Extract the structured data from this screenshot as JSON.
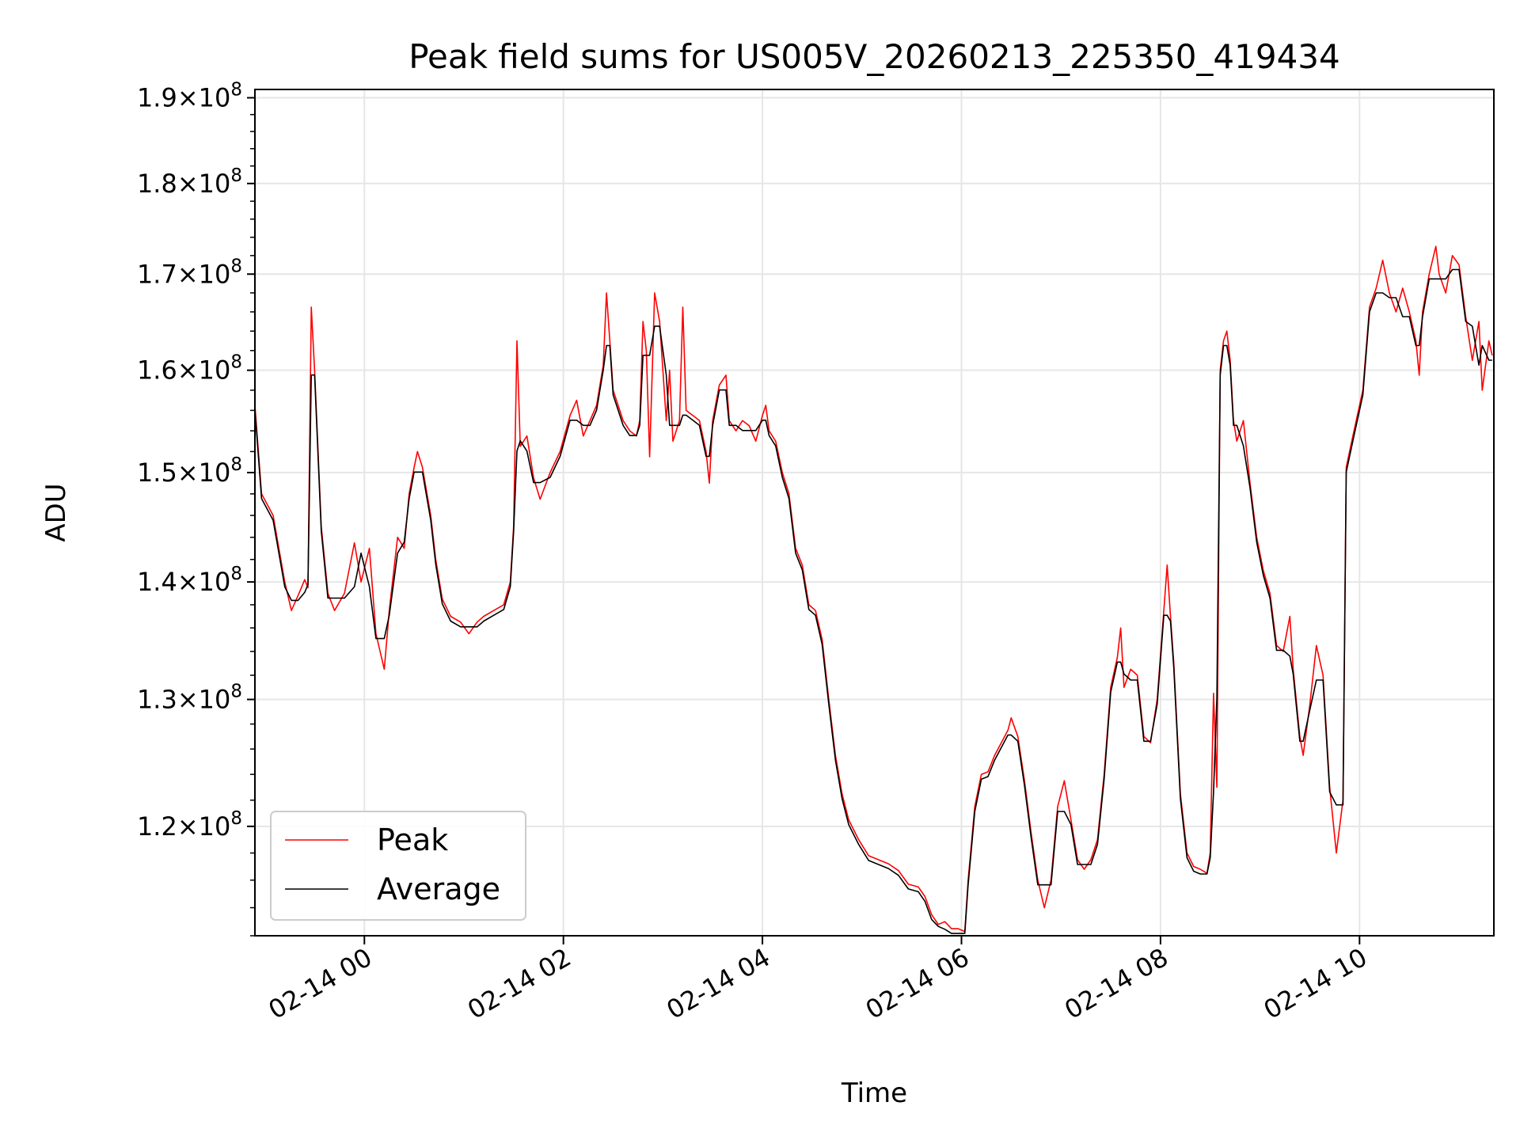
{
  "chart_data": {
    "type": "line",
    "title": "Peak field sums for US005V_20260213_225350_419434",
    "xlabel": "Time",
    "ylabel": "ADU",
    "y_scale": "log",
    "ylim": [
      112000000,
      191000000
    ],
    "xlim": [
      "2026-02-13 22:54",
      "2026-02-14 11:21"
    ],
    "x_ticks": [
      {
        "value": "2026-02-14 00:00",
        "label": "02-14 00"
      },
      {
        "value": "2026-02-14 02:00",
        "label": "02-14 02"
      },
      {
        "value": "2026-02-14 04:00",
        "label": "02-14 04"
      },
      {
        "value": "2026-02-14 06:00",
        "label": "02-14 06"
      },
      {
        "value": "2026-02-14 08:00",
        "label": "02-14 08"
      },
      {
        "value": "2026-02-14 10:00",
        "label": "02-14 10"
      }
    ],
    "y_ticks": [
      {
        "value": 120000000,
        "mantissa": "1.2",
        "base": "10",
        "exp": "8"
      },
      {
        "value": 130000000,
        "mantissa": "1.3",
        "base": "10",
        "exp": "8"
      },
      {
        "value": 140000000,
        "mantissa": "1.4",
        "base": "10",
        "exp": "8"
      },
      {
        "value": 150000000,
        "mantissa": "1.5",
        "base": "10",
        "exp": "8"
      },
      {
        "value": 160000000,
        "mantissa": "1.6",
        "base": "10",
        "exp": "8"
      },
      {
        "value": 170000000,
        "mantissa": "1.7",
        "base": "10",
        "exp": "8"
      },
      {
        "value": 180000000,
        "mantissa": "1.8",
        "base": "10",
        "exp": "8"
      },
      {
        "value": 190000000,
        "mantissa": "1.9",
        "base": "10",
        "exp": "8"
      }
    ],
    "grid": true,
    "legend_position": "lower-left",
    "series": [
      {
        "name": "Peak",
        "color": "#ff0000",
        "points": [
          [
            "2026-02-13 22:54",
            156.5
          ],
          [
            "2026-02-13 22:58",
            148.0
          ],
          [
            "2026-02-13 23:05",
            146.0
          ],
          [
            "2026-02-13 23:12",
            140.0
          ],
          [
            "2026-02-13 23:16",
            137.5
          ],
          [
            "2026-02-13 23:20",
            138.8
          ],
          [
            "2026-02-13 23:24",
            140.2
          ],
          [
            "2026-02-13 23:26",
            139.5
          ],
          [
            "2026-02-13 23:28",
            166.5
          ],
          [
            "2026-02-13 23:30",
            160.0
          ],
          [
            "2026-02-13 23:34",
            145.0
          ],
          [
            "2026-02-13 23:38",
            139.0
          ],
          [
            "2026-02-13 23:42",
            137.5
          ],
          [
            "2026-02-13 23:48",
            139.0
          ],
          [
            "2026-02-13 23:54",
            143.5
          ],
          [
            "2026-02-13 23:58",
            140.0
          ],
          [
            "2026-02-14 00:03",
            143.0
          ],
          [
            "2026-02-14 00:07",
            135.5
          ],
          [
            "2026-02-14 00:12",
            132.5
          ],
          [
            "2026-02-14 00:15",
            137.5
          ],
          [
            "2026-02-14 00:20",
            144.0
          ],
          [
            "2026-02-14 00:24",
            143.0
          ],
          [
            "2026-02-14 00:27",
            148.0
          ],
          [
            "2026-02-14 00:30",
            150.5
          ],
          [
            "2026-02-14 00:32",
            152.0
          ],
          [
            "2026-02-14 00:35",
            150.5
          ],
          [
            "2026-02-14 00:40",
            146.0
          ],
          [
            "2026-02-14 00:43",
            142.0
          ],
          [
            "2026-02-14 00:47",
            138.5
          ],
          [
            "2026-02-14 00:52",
            137.0
          ],
          [
            "2026-02-14 00:58",
            136.5
          ],
          [
            "2026-02-14 01:03",
            135.5
          ],
          [
            "2026-02-14 01:08",
            136.5
          ],
          [
            "2026-02-14 01:12",
            137.0
          ],
          [
            "2026-02-14 01:18",
            137.5
          ],
          [
            "2026-02-14 01:24",
            138.0
          ],
          [
            "2026-02-14 01:28",
            140.0
          ],
          [
            "2026-02-14 01:30",
            145.0
          ],
          [
            "2026-02-14 01:32",
            163.0
          ],
          [
            "2026-02-14 01:34",
            152.5
          ],
          [
            "2026-02-14 01:38",
            153.5
          ],
          [
            "2026-02-14 01:42",
            149.5
          ],
          [
            "2026-02-14 01:46",
            147.5
          ],
          [
            "2026-02-14 01:52",
            150.0
          ],
          [
            "2026-02-14 01:58",
            152.0
          ],
          [
            "2026-02-14 02:04",
            155.5
          ],
          [
            "2026-02-14 02:08",
            157.0
          ],
          [
            "2026-02-14 02:12",
            153.5
          ],
          [
            "2026-02-14 02:16",
            155.0
          ],
          [
            "2026-02-14 02:20",
            156.5
          ],
          [
            "2026-02-14 02:24",
            160.5
          ],
          [
            "2026-02-14 02:26",
            168.0
          ],
          [
            "2026-02-14 02:28",
            163.0
          ],
          [
            "2026-02-14 02:30",
            158.0
          ],
          [
            "2026-02-14 02:32",
            157.0
          ],
          [
            "2026-02-14 02:36",
            155.0
          ],
          [
            "2026-02-14 02:40",
            154.0
          ],
          [
            "2026-02-14 02:44",
            153.5
          ],
          [
            "2026-02-14 02:46",
            155.0
          ],
          [
            "2026-02-14 02:48",
            165.0
          ],
          [
            "2026-02-14 02:50",
            162.0
          ],
          [
            "2026-02-14 02:52",
            151.5
          ],
          [
            "2026-02-14 02:55",
            168.0
          ],
          [
            "2026-02-14 02:58",
            165.0
          ],
          [
            "2026-02-14 03:02",
            155.0
          ],
          [
            "2026-02-14 03:04",
            160.0
          ],
          [
            "2026-02-14 03:06",
            153.0
          ],
          [
            "2026-02-14 03:10",
            155.0
          ],
          [
            "2026-02-14 03:12",
            166.5
          ],
          [
            "2026-02-14 03:14",
            156.0
          ],
          [
            "2026-02-14 03:18",
            155.5
          ],
          [
            "2026-02-14 03:22",
            155.0
          ],
          [
            "2026-02-14 03:26",
            152.0
          ],
          [
            "2026-02-14 03:28",
            149.0
          ],
          [
            "2026-02-14 03:30",
            155.0
          ],
          [
            "2026-02-14 03:34",
            158.5
          ],
          [
            "2026-02-14 03:38",
            159.5
          ],
          [
            "2026-02-14 03:40",
            155.0
          ],
          [
            "2026-02-14 03:44",
            154.0
          ],
          [
            "2026-02-14 03:48",
            155.0
          ],
          [
            "2026-02-14 03:52",
            154.5
          ],
          [
            "2026-02-14 03:56",
            153.0
          ],
          [
            "2026-02-14 04:00",
            155.5
          ],
          [
            "2026-02-14 04:02",
            156.5
          ],
          [
            "2026-02-14 04:04",
            154.0
          ],
          [
            "2026-02-14 04:08",
            153.0
          ],
          [
            "2026-02-14 04:12",
            150.0
          ],
          [
            "2026-02-14 04:16",
            148.0
          ],
          [
            "2026-02-14 04:20",
            143.0
          ],
          [
            "2026-02-14 04:24",
            141.5
          ],
          [
            "2026-02-14 04:28",
            138.0
          ],
          [
            "2026-02-14 04:32",
            137.5
          ],
          [
            "2026-02-14 04:36",
            135.0
          ],
          [
            "2026-02-14 04:40",
            130.0
          ],
          [
            "2026-02-14 04:44",
            125.5
          ],
          [
            "2026-02-14 04:48",
            122.5
          ],
          [
            "2026-02-14 04:52",
            120.5
          ],
          [
            "2026-02-14 04:58",
            119.0
          ],
          [
            "2026-02-14 05:04",
            117.8
          ],
          [
            "2026-02-14 05:10",
            117.5
          ],
          [
            "2026-02-14 05:16",
            117.2
          ],
          [
            "2026-02-14 05:22",
            116.7
          ],
          [
            "2026-02-14 05:28",
            115.7
          ],
          [
            "2026-02-14 05:34",
            115.5
          ],
          [
            "2026-02-14 05:38",
            114.8
          ],
          [
            "2026-02-14 05:42",
            113.5
          ],
          [
            "2026-02-14 05:46",
            112.8
          ],
          [
            "2026-02-14 05:50",
            113.0
          ],
          [
            "2026-02-14 05:54",
            112.5
          ],
          [
            "2026-02-14 05:58",
            112.5
          ],
          [
            "2026-02-14 06:02",
            112.3
          ],
          [
            "2026-02-14 06:04",
            116.0
          ],
          [
            "2026-02-14 06:08",
            121.5
          ],
          [
            "2026-02-14 06:12",
            124.0
          ],
          [
            "2026-02-14 06:16",
            124.2
          ],
          [
            "2026-02-14 06:20",
            125.5
          ],
          [
            "2026-02-14 06:24",
            126.5
          ],
          [
            "2026-02-14 06:28",
            127.5
          ],
          [
            "2026-02-14 06:30",
            128.5
          ],
          [
            "2026-02-14 06:34",
            127.0
          ],
          [
            "2026-02-14 06:38",
            123.5
          ],
          [
            "2026-02-14 06:42",
            119.5
          ],
          [
            "2026-02-14 06:46",
            116.0
          ],
          [
            "2026-02-14 06:50",
            114.0
          ],
          [
            "2026-02-14 06:54",
            116.0
          ],
          [
            "2026-02-14 06:58",
            121.5
          ],
          [
            "2026-02-14 07:02",
            123.5
          ],
          [
            "2026-02-14 07:06",
            120.5
          ],
          [
            "2026-02-14 07:10",
            117.5
          ],
          [
            "2026-02-14 07:14",
            116.8
          ],
          [
            "2026-02-14 07:18",
            117.5
          ],
          [
            "2026-02-14 07:22",
            119.0
          ],
          [
            "2026-02-14 07:26",
            124.0
          ],
          [
            "2026-02-14 07:30",
            131.0
          ],
          [
            "2026-02-14 07:34",
            133.5
          ],
          [
            "2026-02-14 07:36",
            136.0
          ],
          [
            "2026-02-14 07:38",
            131.0
          ],
          [
            "2026-02-14 07:42",
            132.5
          ],
          [
            "2026-02-14 07:46",
            132.0
          ],
          [
            "2026-02-14 07:50",
            127.0
          ],
          [
            "2026-02-14 07:54",
            126.5
          ],
          [
            "2026-02-14 07:58",
            130.0
          ],
          [
            "2026-02-14 08:02",
            137.5
          ],
          [
            "2026-02-14 08:04",
            141.5
          ],
          [
            "2026-02-14 08:06",
            137.0
          ],
          [
            "2026-02-14 08:08",
            133.0
          ],
          [
            "2026-02-14 08:12",
            122.5
          ],
          [
            "2026-02-14 08:16",
            118.0
          ],
          [
            "2026-02-14 08:20",
            117.0
          ],
          [
            "2026-02-14 08:24",
            116.8
          ],
          [
            "2026-02-14 08:28",
            116.5
          ],
          [
            "2026-02-14 08:30",
            118.0
          ],
          [
            "2026-02-14 08:32",
            130.5
          ],
          [
            "2026-02-14 08:34",
            123.0
          ],
          [
            "2026-02-14 08:36",
            160.0
          ],
          [
            "2026-02-14 08:38",
            163.0
          ],
          [
            "2026-02-14 08:40",
            164.0
          ],
          [
            "2026-02-14 08:42",
            161.0
          ],
          [
            "2026-02-14 08:44",
            155.0
          ],
          [
            "2026-02-14 08:46",
            153.0
          ],
          [
            "2026-02-14 08:50",
            155.0
          ],
          [
            "2026-02-14 08:54",
            149.0
          ],
          [
            "2026-02-14 08:58",
            144.0
          ],
          [
            "2026-02-14 09:02",
            141.0
          ],
          [
            "2026-02-14 09:06",
            139.0
          ],
          [
            "2026-02-14 09:10",
            134.5
          ],
          [
            "2026-02-14 09:14",
            134.0
          ],
          [
            "2026-02-14 09:18",
            137.0
          ],
          [
            "2026-02-14 09:20",
            132.5
          ],
          [
            "2026-02-14 09:24",
            127.0
          ],
          [
            "2026-02-14 09:26",
            125.5
          ],
          [
            "2026-02-14 09:30",
            129.5
          ],
          [
            "2026-02-14 09:34",
            134.5
          ],
          [
            "2026-02-14 09:38",
            132.0
          ],
          [
            "2026-02-14 09:42",
            123.0
          ],
          [
            "2026-02-14 09:46",
            118.0
          ],
          [
            "2026-02-14 09:50",
            122.0
          ],
          [
            "2026-02-14 09:52",
            150.5
          ],
          [
            "2026-02-14 09:56",
            153.5
          ],
          [
            "2026-02-14 10:02",
            158.0
          ],
          [
            "2026-02-14 10:06",
            166.5
          ],
          [
            "2026-02-14 10:10",
            168.5
          ],
          [
            "2026-02-14 10:14",
            171.5
          ],
          [
            "2026-02-14 10:18",
            168.0
          ],
          [
            "2026-02-14 10:22",
            166.0
          ],
          [
            "2026-02-14 10:26",
            168.5
          ],
          [
            "2026-02-14 10:30",
            166.0
          ],
          [
            "2026-02-14 10:34",
            163.0
          ],
          [
            "2026-02-14 10:36",
            159.5
          ],
          [
            "2026-02-14 10:38",
            166.0
          ],
          [
            "2026-02-14 10:42",
            170.0
          ],
          [
            "2026-02-14 10:46",
            173.0
          ],
          [
            "2026-02-14 10:48",
            170.0
          ],
          [
            "2026-02-14 10:52",
            168.0
          ],
          [
            "2026-02-14 10:56",
            172.0
          ],
          [
            "2026-02-14 11:00",
            171.0
          ],
          [
            "2026-02-14 11:04",
            165.5
          ],
          [
            "2026-02-14 11:08",
            161.0
          ],
          [
            "2026-02-14 11:12",
            165.0
          ],
          [
            "2026-02-14 11:14",
            158.0
          ],
          [
            "2026-02-14 11:18",
            163.0
          ],
          [
            "2026-02-14 11:20",
            161.5
          ]
        ]
      },
      {
        "name": "Average",
        "color": "#000000",
        "points": []
      }
    ]
  }
}
